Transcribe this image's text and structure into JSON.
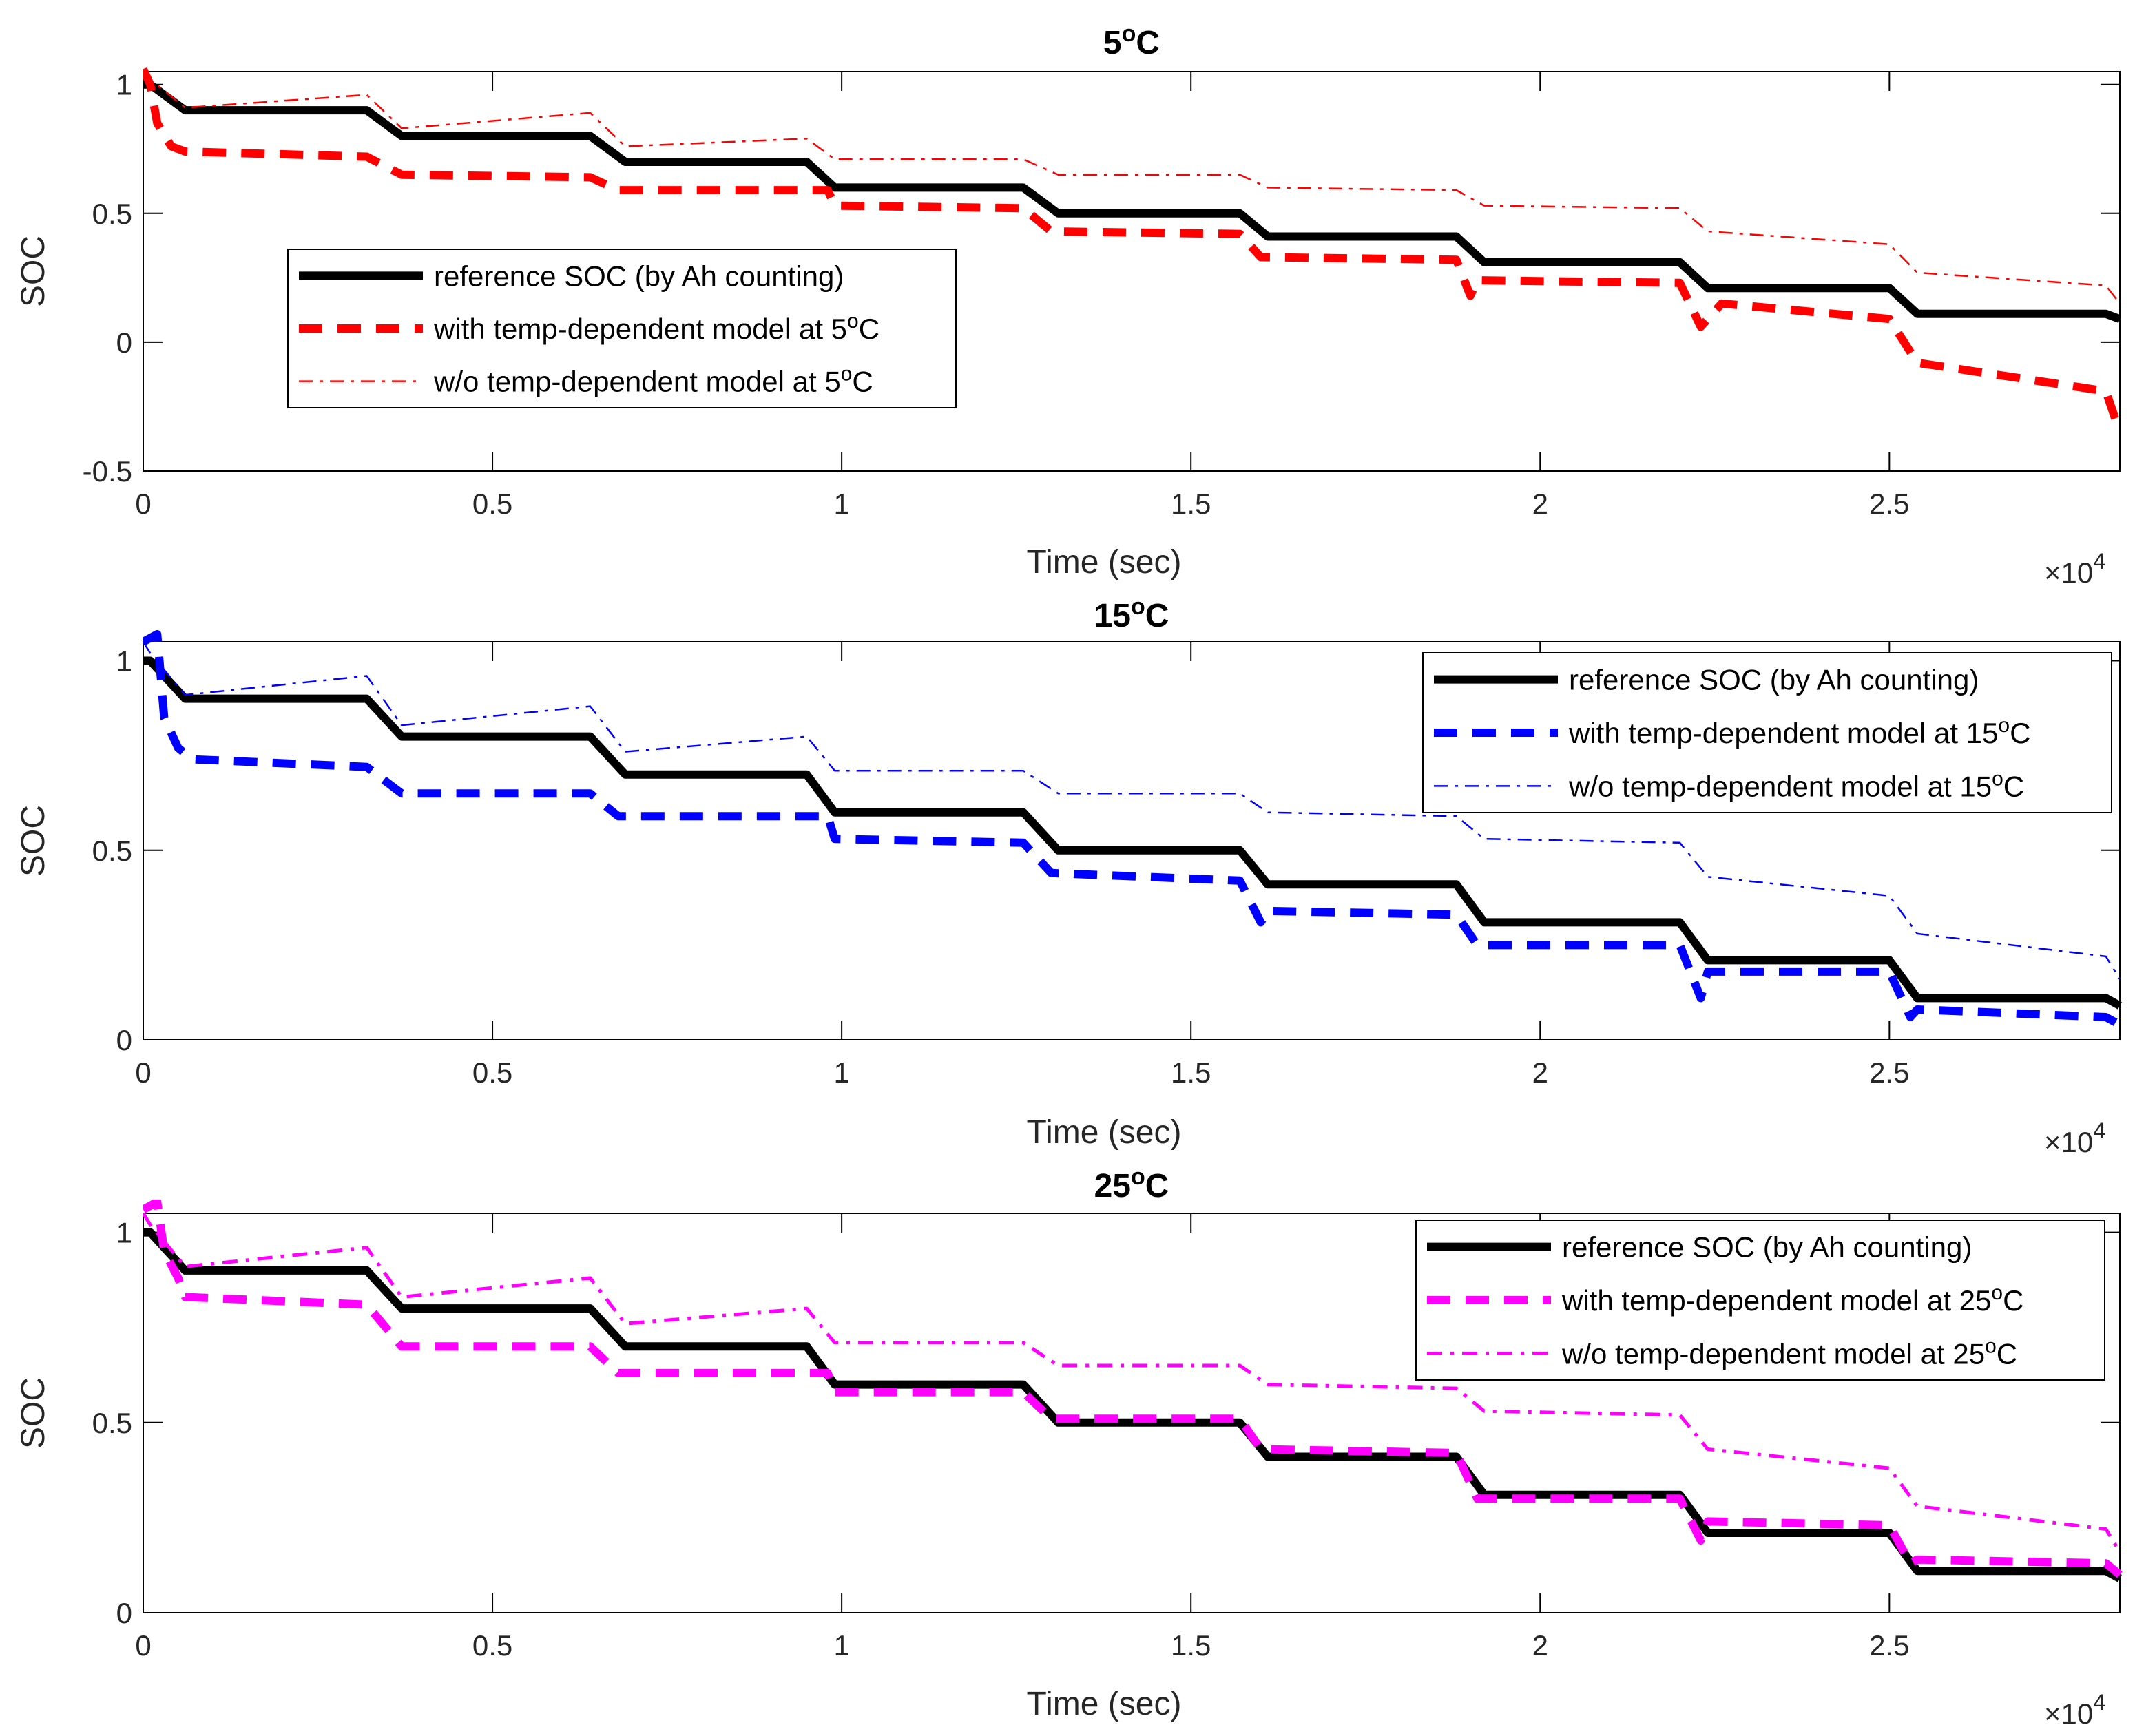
{
  "colors": {
    "reference": "#000000",
    "p5": "#ff0000",
    "p15": "#0000ff",
    "p25": "#ff00ff"
  },
  "chart_data": [
    {
      "type": "line",
      "title": "5",
      "title_unit": "C",
      "title_deg": "o",
      "xlabel": "Time (sec)",
      "ylabel": "SOC",
      "x_multiplier": {
        "base": "×10",
        "exp": "4"
      },
      "xlim": [
        0,
        2.83
      ],
      "ylim": [
        -0.5,
        1.05
      ],
      "xticks": [
        0,
        0.5,
        1,
        1.5,
        2,
        2.5
      ],
      "xtick_labels": [
        "0",
        "0.5",
        "1",
        "1.5",
        "2",
        "2.5"
      ],
      "yticks": [
        -0.5,
        0,
        0.5,
        1
      ],
      "ytick_labels": [
        "-0.5",
        "0",
        "0.5",
        "1"
      ],
      "legend_position": "center-left",
      "series": [
        {
          "name": "reference SOC (by Ah counting)",
          "style": "solid-thick",
          "color": "#000000",
          "points": [
            [
              0,
              1.0
            ],
            [
              0.01,
              1.0
            ],
            [
              0.06,
              0.9
            ],
            [
              0.32,
              0.9
            ],
            [
              0.37,
              0.8
            ],
            [
              0.64,
              0.8
            ],
            [
              0.69,
              0.7
            ],
            [
              0.95,
              0.7
            ],
            [
              0.99,
              0.6
            ],
            [
              1.26,
              0.6
            ],
            [
              1.31,
              0.5
            ],
            [
              1.57,
              0.5
            ],
            [
              1.61,
              0.41
            ],
            [
              1.88,
              0.41
            ],
            [
              1.92,
              0.31
            ],
            [
              2.2,
              0.31
            ],
            [
              2.24,
              0.21
            ],
            [
              2.5,
              0.21
            ],
            [
              2.54,
              0.11
            ],
            [
              2.81,
              0.11
            ],
            [
              2.83,
              0.09
            ]
          ]
        },
        {
          "name": "with temp-dependent model at 5",
          "suffix": "C",
          "sup": "o",
          "style": "dashed-thick",
          "color": "#ff0000",
          "points": [
            [
              0,
              1.06
            ],
            [
              0.01,
              1.0
            ],
            [
              0.02,
              0.85
            ],
            [
              0.04,
              0.76
            ],
            [
              0.06,
              0.74
            ],
            [
              0.32,
              0.72
            ],
            [
              0.37,
              0.65
            ],
            [
              0.64,
              0.64
            ],
            [
              0.68,
              0.59
            ],
            [
              0.98,
              0.59
            ],
            [
              0.99,
              0.53
            ],
            [
              1.26,
              0.52
            ],
            [
              1.3,
              0.43
            ],
            [
              1.57,
              0.42
            ],
            [
              1.6,
              0.33
            ],
            [
              1.88,
              0.32
            ],
            [
              1.9,
              0.18
            ],
            [
              1.91,
              0.24
            ],
            [
              2.2,
              0.23
            ],
            [
              2.23,
              0.06
            ],
            [
              2.26,
              0.15
            ],
            [
              2.5,
              0.09
            ],
            [
              2.54,
              -0.08
            ],
            [
              2.81,
              -0.19
            ],
            [
              2.83,
              -0.35
            ]
          ]
        },
        {
          "name": "w/o temp-dependent model at 5",
          "suffix": "C",
          "sup": "o",
          "style": "dashdot-thin",
          "color": "#ff0000",
          "points": [
            [
              0,
              1.05
            ],
            [
              0.01,
              1.02
            ],
            [
              0.06,
              0.91
            ],
            [
              0.32,
              0.96
            ],
            [
              0.37,
              0.83
            ],
            [
              0.64,
              0.89
            ],
            [
              0.69,
              0.76
            ],
            [
              0.95,
              0.79
            ],
            [
              0.99,
              0.71
            ],
            [
              1.26,
              0.71
            ],
            [
              1.31,
              0.65
            ],
            [
              1.57,
              0.65
            ],
            [
              1.61,
              0.6
            ],
            [
              1.88,
              0.59
            ],
            [
              1.92,
              0.53
            ],
            [
              2.2,
              0.52
            ],
            [
              2.24,
              0.43
            ],
            [
              2.5,
              0.38
            ],
            [
              2.54,
              0.27
            ],
            [
              2.81,
              0.22
            ],
            [
              2.83,
              0.15
            ]
          ]
        }
      ]
    },
    {
      "type": "line",
      "title": "15",
      "title_unit": "C",
      "title_deg": "o",
      "xlabel": "Time (sec)",
      "ylabel": "SOC",
      "x_multiplier": {
        "base": "×10",
        "exp": "4"
      },
      "xlim": [
        0,
        2.83
      ],
      "ylim": [
        0,
        1.05
      ],
      "xticks": [
        0,
        0.5,
        1,
        1.5,
        2,
        2.5
      ],
      "xtick_labels": [
        "0",
        "0.5",
        "1",
        "1.5",
        "2",
        "2.5"
      ],
      "yticks": [
        0,
        0.5,
        1
      ],
      "ytick_labels": [
        "0",
        "0.5",
        "1"
      ],
      "legend_position": "top-right",
      "series": [
        {
          "name": "reference SOC (by Ah counting)",
          "style": "solid-thick",
          "color": "#000000",
          "points": [
            [
              0,
              1.0
            ],
            [
              0.01,
              1.0
            ],
            [
              0.06,
              0.9
            ],
            [
              0.32,
              0.9
            ],
            [
              0.37,
              0.8
            ],
            [
              0.64,
              0.8
            ],
            [
              0.69,
              0.7
            ],
            [
              0.95,
              0.7
            ],
            [
              0.99,
              0.6
            ],
            [
              1.26,
              0.6
            ],
            [
              1.31,
              0.5
            ],
            [
              1.57,
              0.5
            ],
            [
              1.61,
              0.41
            ],
            [
              1.88,
              0.41
            ],
            [
              1.92,
              0.31
            ],
            [
              2.2,
              0.31
            ],
            [
              2.24,
              0.21
            ],
            [
              2.5,
              0.21
            ],
            [
              2.54,
              0.11
            ],
            [
              2.81,
              0.11
            ],
            [
              2.83,
              0.09
            ]
          ]
        },
        {
          "name": "with temp-dependent model at 15",
          "suffix": "C",
          "sup": "o",
          "style": "dashed-thick",
          "color": "#0000ff",
          "points": [
            [
              0,
              1.05
            ],
            [
              0.02,
              1.07
            ],
            [
              0.03,
              0.85
            ],
            [
              0.05,
              0.77
            ],
            [
              0.07,
              0.74
            ],
            [
              0.32,
              0.72
            ],
            [
              0.37,
              0.65
            ],
            [
              0.64,
              0.65
            ],
            [
              0.68,
              0.59
            ],
            [
              0.98,
              0.59
            ],
            [
              0.99,
              0.53
            ],
            [
              1.26,
              0.52
            ],
            [
              1.3,
              0.44
            ],
            [
              1.57,
              0.42
            ],
            [
              1.6,
              0.31
            ],
            [
              1.61,
              0.34
            ],
            [
              1.88,
              0.33
            ],
            [
              1.91,
              0.25
            ],
            [
              2.2,
              0.25
            ],
            [
              2.23,
              0.11
            ],
            [
              2.24,
              0.18
            ],
            [
              2.5,
              0.18
            ],
            [
              2.53,
              0.06
            ],
            [
              2.54,
              0.08
            ],
            [
              2.81,
              0.06
            ],
            [
              2.83,
              0.04
            ]
          ]
        },
        {
          "name": "w/o temp-dependent model at 15",
          "suffix": "C",
          "sup": "o",
          "style": "dashdot-thin",
          "color": "#0000ff",
          "points": [
            [
              0,
              1.05
            ],
            [
              0.01,
              1.02
            ],
            [
              0.06,
              0.91
            ],
            [
              0.32,
              0.96
            ],
            [
              0.37,
              0.83
            ],
            [
              0.64,
              0.88
            ],
            [
              0.69,
              0.76
            ],
            [
              0.95,
              0.8
            ],
            [
              0.99,
              0.71
            ],
            [
              1.26,
              0.71
            ],
            [
              1.31,
              0.65
            ],
            [
              1.57,
              0.65
            ],
            [
              1.61,
              0.6
            ],
            [
              1.88,
              0.59
            ],
            [
              1.92,
              0.53
            ],
            [
              2.2,
              0.52
            ],
            [
              2.24,
              0.43
            ],
            [
              2.5,
              0.38
            ],
            [
              2.54,
              0.28
            ],
            [
              2.81,
              0.22
            ],
            [
              2.83,
              0.16
            ]
          ]
        }
      ]
    },
    {
      "type": "line",
      "title": "25",
      "title_unit": "C",
      "title_deg": "o",
      "xlabel": "Time (sec)",
      "ylabel": "SOC",
      "x_multiplier": {
        "base": "×10",
        "exp": "4"
      },
      "xlim": [
        0,
        2.83
      ],
      "ylim": [
        0,
        1.05
      ],
      "xticks": [
        0,
        0.5,
        1,
        1.5,
        2,
        2.5
      ],
      "xtick_labels": [
        "0",
        "0.5",
        "1",
        "1.5",
        "2",
        "2.5"
      ],
      "yticks": [
        0,
        0.5,
        1
      ],
      "ytick_labels": [
        "0",
        "0.5",
        "1"
      ],
      "legend_position": "top-right",
      "series": [
        {
          "name": "reference SOC (by Ah counting)",
          "style": "solid-thick",
          "color": "#000000",
          "points": [
            [
              0,
              1.0
            ],
            [
              0.01,
              1.0
            ],
            [
              0.06,
              0.9
            ],
            [
              0.32,
              0.9
            ],
            [
              0.37,
              0.8
            ],
            [
              0.64,
              0.8
            ],
            [
              0.69,
              0.7
            ],
            [
              0.95,
              0.7
            ],
            [
              0.99,
              0.6
            ],
            [
              1.26,
              0.6
            ],
            [
              1.31,
              0.5
            ],
            [
              1.57,
              0.5
            ],
            [
              1.61,
              0.41
            ],
            [
              1.88,
              0.41
            ],
            [
              1.92,
              0.31
            ],
            [
              2.2,
              0.31
            ],
            [
              2.24,
              0.21
            ],
            [
              2.5,
              0.21
            ],
            [
              2.54,
              0.11
            ],
            [
              2.81,
              0.11
            ],
            [
              2.83,
              0.09
            ]
          ]
        },
        {
          "name": "with temp-dependent model at 25",
          "suffix": "C",
          "sup": "o",
          "style": "dashed-thick",
          "color": "#ff00ff",
          "points": [
            [
              0,
              1.06
            ],
            [
              0.02,
              1.08
            ],
            [
              0.03,
              0.95
            ],
            [
              0.05,
              0.88
            ],
            [
              0.06,
              0.83
            ],
            [
              0.32,
              0.81
            ],
            [
              0.37,
              0.7
            ],
            [
              0.64,
              0.7
            ],
            [
              0.68,
              0.63
            ],
            [
              0.98,
              0.63
            ],
            [
              0.99,
              0.58
            ],
            [
              1.26,
              0.58
            ],
            [
              1.3,
              0.51
            ],
            [
              1.57,
              0.51
            ],
            [
              1.6,
              0.43
            ],
            [
              1.88,
              0.42
            ],
            [
              1.91,
              0.3
            ],
            [
              2.2,
              0.3
            ],
            [
              2.23,
              0.19
            ],
            [
              2.24,
              0.24
            ],
            [
              2.5,
              0.23
            ],
            [
              2.53,
              0.13
            ],
            [
              2.54,
              0.14
            ],
            [
              2.81,
              0.13
            ],
            [
              2.83,
              0.1
            ]
          ]
        },
        {
          "name": "w/o temp-dependent model at 25",
          "suffix": "C",
          "sup": "o",
          "style": "dashdot-medium",
          "color": "#ff00ff",
          "points": [
            [
              0,
              1.05
            ],
            [
              0.01,
              1.02
            ],
            [
              0.06,
              0.91
            ],
            [
              0.32,
              0.96
            ],
            [
              0.37,
              0.83
            ],
            [
              0.64,
              0.88
            ],
            [
              0.69,
              0.76
            ],
            [
              0.95,
              0.8
            ],
            [
              0.99,
              0.71
            ],
            [
              1.26,
              0.71
            ],
            [
              1.31,
              0.65
            ],
            [
              1.57,
              0.65
            ],
            [
              1.61,
              0.6
            ],
            [
              1.88,
              0.59
            ],
            [
              1.92,
              0.53
            ],
            [
              2.2,
              0.52
            ],
            [
              2.24,
              0.43
            ],
            [
              2.5,
              0.38
            ],
            [
              2.54,
              0.28
            ],
            [
              2.81,
              0.22
            ],
            [
              2.83,
              0.16
            ]
          ]
        }
      ]
    }
  ]
}
